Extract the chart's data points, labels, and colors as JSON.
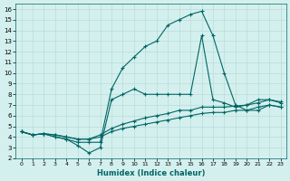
{
  "xlabel": "Humidex (Indice chaleur)",
  "xlim": [
    -0.5,
    23.5
  ],
  "ylim": [
    2,
    16.5
  ],
  "xticks": [
    0,
    1,
    2,
    3,
    4,
    5,
    6,
    7,
    8,
    9,
    10,
    11,
    12,
    13,
    14,
    15,
    16,
    17,
    18,
    19,
    20,
    21,
    22,
    23
  ],
  "yticks": [
    2,
    3,
    4,
    5,
    6,
    7,
    8,
    9,
    10,
    11,
    12,
    13,
    14,
    15,
    16
  ],
  "bg_color": "#d4f0ee",
  "grid_color": "#b8ddd8",
  "line_color": "#006666",
  "marker": "+",
  "line_width": 0.8,
  "curves": [
    [
      4.5,
      4.2,
      4.3,
      4.0,
      3.8,
      3.5,
      3.5,
      3.5,
      8.5,
      10.5,
      11.5,
      12.5,
      13.0,
      14.5,
      15.0,
      15.5,
      15.8,
      13.5,
      10.0,
      7.0,
      6.5,
      6.5,
      7.0,
      6.8
    ],
    [
      4.5,
      4.2,
      4.3,
      4.0,
      3.8,
      3.2,
      2.5,
      3.0,
      7.5,
      8.0,
      8.5,
      8.0,
      8.0,
      8.0,
      8.0,
      8.0,
      13.5,
      7.5,
      7.2,
      6.8,
      7.0,
      7.5,
      7.5,
      7.2
    ],
    [
      4.5,
      4.2,
      4.3,
      4.2,
      4.0,
      3.8,
      3.8,
      4.2,
      4.8,
      5.2,
      5.5,
      5.8,
      6.0,
      6.2,
      6.5,
      6.5,
      6.8,
      6.8,
      6.8,
      6.9,
      7.0,
      7.2,
      7.5,
      7.3
    ],
    [
      4.5,
      4.2,
      4.3,
      4.2,
      4.0,
      3.8,
      3.8,
      4.0,
      4.5,
      4.8,
      5.0,
      5.2,
      5.4,
      5.6,
      5.8,
      6.0,
      6.2,
      6.3,
      6.3,
      6.5,
      6.5,
      6.8,
      7.0,
      6.8
    ]
  ]
}
